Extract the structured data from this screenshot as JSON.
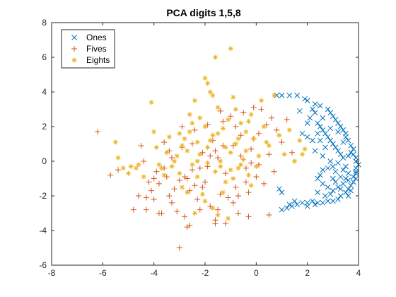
{
  "chart_data": {
    "type": "scatter",
    "title": "PCA digits 1,5,8",
    "xlabel": "",
    "ylabel": "",
    "xlim": [
      -8,
      4
    ],
    "ylim": [
      -6,
      8
    ],
    "xticks": [
      "-8",
      "-6",
      "-4",
      "-2",
      "0",
      "2",
      "4"
    ],
    "yticks": [
      "-6",
      "-4",
      "-2",
      "0",
      "2",
      "4",
      "6",
      "8"
    ],
    "grid": false,
    "legend_position": "top-left",
    "series": [
      {
        "name": "Ones",
        "marker": "x",
        "color": "#0072BD",
        "points": [
          [
            0.8,
            3.8
          ],
          [
            1.0,
            3.8
          ],
          [
            1.3,
            3.8
          ],
          [
            1.6,
            3.8
          ],
          [
            1.9,
            3.6
          ],
          [
            2.0,
            3.5
          ],
          [
            2.3,
            3.3
          ],
          [
            2.5,
            3.2
          ],
          [
            2.8,
            3.0
          ],
          [
            2.9,
            2.8
          ],
          [
            3.0,
            2.6
          ],
          [
            3.1,
            2.4
          ],
          [
            3.2,
            2.2
          ],
          [
            3.3,
            2.0
          ],
          [
            3.4,
            1.8
          ],
          [
            3.5,
            1.6
          ],
          [
            3.5,
            1.4
          ],
          [
            3.6,
            1.2
          ],
          [
            3.7,
            0.9
          ],
          [
            3.8,
            0.7
          ],
          [
            3.8,
            0.4
          ],
          [
            3.9,
            0.2
          ],
          [
            3.9,
            0.0
          ],
          [
            4.0,
            -0.2
          ],
          [
            3.9,
            -0.4
          ],
          [
            3.9,
            -0.7
          ],
          [
            3.9,
            -1.0
          ],
          [
            3.8,
            -1.2
          ],
          [
            3.7,
            -1.4
          ],
          [
            3.6,
            -1.6
          ],
          [
            3.5,
            -1.8
          ],
          [
            3.3,
            -2.0
          ],
          [
            3.2,
            -2.2
          ],
          [
            3.0,
            -2.3
          ],
          [
            2.8,
            -2.3
          ],
          [
            2.6,
            -2.4
          ],
          [
            2.4,
            -2.4
          ],
          [
            2.2,
            -2.3
          ],
          [
            2.0,
            -2.4
          ],
          [
            1.8,
            -2.4
          ],
          [
            1.6,
            -2.5
          ],
          [
            1.4,
            -2.6
          ],
          [
            1.2,
            -2.7
          ],
          [
            1.0,
            -2.8
          ],
          [
            0.9,
            -1.6
          ],
          [
            1.0,
            -1.8
          ],
          [
            2.0,
            2.2
          ],
          [
            2.1,
            2.5
          ],
          [
            2.2,
            3.0
          ],
          [
            2.3,
            2.8
          ],
          [
            2.4,
            2.2
          ],
          [
            2.5,
            2.0
          ],
          [
            2.6,
            1.8
          ],
          [
            2.7,
            1.6
          ],
          [
            2.8,
            1.4
          ],
          [
            2.9,
            1.2
          ],
          [
            3.0,
            1.0
          ],
          [
            3.1,
            0.8
          ],
          [
            3.2,
            0.6
          ],
          [
            3.3,
            0.4
          ],
          [
            3.4,
            0.2
          ],
          [
            3.2,
            -0.1
          ],
          [
            3.0,
            -0.3
          ],
          [
            2.8,
            -0.4
          ],
          [
            2.6,
            -0.5
          ],
          [
            2.5,
            -0.8
          ],
          [
            2.4,
            -1.0
          ],
          [
            2.6,
            -1.3
          ],
          [
            2.8,
            -1.5
          ],
          [
            3.0,
            -1.7
          ],
          [
            3.2,
            -1.5
          ],
          [
            3.4,
            -1.3
          ],
          [
            3.5,
            -1.0
          ],
          [
            3.6,
            -0.7
          ],
          [
            3.4,
            -0.5
          ],
          [
            3.6,
            0.3
          ],
          [
            3.7,
            0.5
          ],
          [
            2.3,
            0.6
          ],
          [
            2.6,
            0.3
          ],
          [
            2.9,
            0.0
          ],
          [
            3.1,
            -0.6
          ],
          [
            3.3,
            -0.9
          ],
          [
            3.5,
            -0.3
          ],
          [
            2.4,
            -1.8
          ],
          [
            2.7,
            -2.0
          ],
          [
            2.9,
            -1.9
          ],
          [
            3.1,
            -1.2
          ],
          [
            3.3,
            -1.6
          ],
          [
            3.6,
            -2.0
          ],
          [
            3.7,
            -1.7
          ],
          [
            1.8,
            1.6
          ],
          [
            2.0,
            1.4
          ],
          [
            2.2,
            1.2
          ],
          [
            2.4,
            1.6
          ],
          [
            2.9,
            1.9
          ],
          [
            3.2,
            1.7
          ],
          [
            3.4,
            1.1
          ],
          [
            1.5,
            -2.3
          ],
          [
            1.3,
            -2.5
          ],
          [
            2.0,
            -2.6
          ],
          [
            2.3,
            -2.5
          ],
          [
            3.9,
            -0.6
          ],
          [
            3.8,
            -0.9
          ],
          [
            3.6,
            -1.1
          ],
          [
            2.7,
            0.8
          ],
          [
            2.5,
            1.2
          ],
          [
            1.7,
            2.9
          ],
          [
            2.6,
            2.5
          ],
          [
            3.0,
            -1.0
          ]
        ]
      },
      {
        "name": "Fives",
        "marker": "+",
        "color": "#D95319",
        "points": [
          [
            -6.2,
            1.7
          ],
          [
            -5.7,
            -0.8
          ],
          [
            -4.8,
            -2.8
          ],
          [
            -4.3,
            -2.1
          ],
          [
            -4.2,
            -1.2
          ],
          [
            -4.1,
            -1.7
          ],
          [
            -4.0,
            -2.2
          ],
          [
            -3.9,
            -0.6
          ],
          [
            -3.8,
            -1.3
          ],
          [
            -3.7,
            -3.0
          ],
          [
            -3.6,
            1.1
          ],
          [
            -3.5,
            -0.9
          ],
          [
            -3.4,
            0.6
          ],
          [
            -3.3,
            -2.4
          ],
          [
            -3.2,
            -1.6
          ],
          [
            -3.1,
            -2.9
          ],
          [
            -3.0,
            -1.1
          ],
          [
            -2.9,
            0.8
          ],
          [
            -2.8,
            -3.2
          ],
          [
            -2.7,
            -3.8
          ],
          [
            -2.6,
            -1.7
          ],
          [
            -2.5,
            -0.5
          ],
          [
            -2.4,
            1.8
          ],
          [
            -2.3,
            -2.2
          ],
          [
            -2.2,
            -2.8
          ],
          [
            -2.1,
            0.5
          ],
          [
            -2.0,
            -1.2
          ],
          [
            -1.9,
            -0.3
          ],
          [
            -1.8,
            -2.6
          ],
          [
            -1.7,
            1.2
          ],
          [
            -1.6,
            -3.4
          ],
          [
            -1.5,
            0.2
          ],
          [
            -1.4,
            -1.9
          ],
          [
            -1.3,
            2.3
          ],
          [
            -1.2,
            -0.7
          ],
          [
            -1.1,
            -2.1
          ],
          [
            -1.0,
            2.6
          ],
          [
            -0.9,
            0.9
          ],
          [
            -0.8,
            -1.5
          ],
          [
            -0.7,
            -3.0
          ],
          [
            -0.6,
            1.5
          ],
          [
            -0.5,
            2.8
          ],
          [
            -0.4,
            -0.4
          ],
          [
            -0.3,
            -1.8
          ],
          [
            -0.2,
            0.7
          ],
          [
            -0.1,
            3.1
          ],
          [
            0.0,
            -0.9
          ],
          [
            0.1,
            1.6
          ],
          [
            0.2,
            3.0
          ],
          [
            0.3,
            -1.3
          ],
          [
            0.4,
            2.1
          ],
          [
            0.5,
            0.4
          ],
          [
            0.6,
            2.5
          ],
          [
            0.7,
            -0.6
          ],
          [
            0.8,
            1.8
          ],
          [
            1.0,
            1.1
          ],
          [
            1.2,
            2.4
          ],
          [
            -2.7,
            -1.0
          ],
          [
            -3.0,
            -5.0
          ],
          [
            -2.6,
            -3.7
          ],
          [
            -1.2,
            -3.6
          ],
          [
            -1.6,
            -3.6
          ],
          [
            -0.3,
            -3.2
          ],
          [
            0.5,
            -3.1
          ],
          [
            -4.5,
            0.9
          ],
          [
            -4.4,
            0.0
          ],
          [
            -2.9,
            2.0
          ],
          [
            -2.2,
            -0.4
          ],
          [
            -1.8,
            0.3
          ],
          [
            -0.9,
            -2.4
          ],
          [
            -0.6,
            0.3
          ],
          [
            -0.2,
            -0.1
          ],
          [
            0.1,
            -0.2
          ],
          [
            -1.4,
            2.9
          ],
          [
            -1.9,
            2.1
          ],
          [
            -3.3,
            0.2
          ],
          [
            -2.5,
            1.0
          ],
          [
            -0.8,
            2.0
          ],
          [
            -4.6,
            -2.0
          ],
          [
            -3.8,
            -3.0
          ],
          [
            -2.1,
            -1.5
          ],
          [
            -1.5,
            -2.8
          ],
          [
            -0.4,
            -1.2
          ],
          [
            -5.4,
            -0.5
          ],
          [
            -4.0,
            -1.0
          ],
          [
            -3.4,
            -2.0
          ],
          [
            -2.8,
            -0.9
          ],
          [
            -1.3,
            0.9
          ],
          [
            -0.7,
            -2.0
          ],
          [
            1.4,
            0.5
          ],
          [
            -0.1,
            1.3
          ],
          [
            -1.6,
            0.6
          ],
          [
            -2.4,
            -1.4
          ],
          [
            -3.6,
            -0.4
          ],
          [
            -4.3,
            -2.8
          ]
        ]
      },
      {
        "name": "Eights",
        "marker": "*",
        "color": "#EDB120",
        "points": [
          [
            -5.5,
            1.1
          ],
          [
            -5.4,
            0.2
          ],
          [
            -5.2,
            -0.4
          ],
          [
            -5.0,
            -0.7
          ],
          [
            -4.7,
            -0.4
          ],
          [
            -4.4,
            -0.9
          ],
          [
            -4.1,
            3.4
          ],
          [
            -4.0,
            1.7
          ],
          [
            -3.8,
            -0.2
          ],
          [
            -3.6,
            -0.8
          ],
          [
            -3.4,
            1.4
          ],
          [
            -3.3,
            -0.3
          ],
          [
            -3.1,
            0.3
          ],
          [
            -3.0,
            -0.7
          ],
          [
            -2.9,
            -1.5
          ],
          [
            -2.8,
            1.3
          ],
          [
            -2.7,
            0.6
          ],
          [
            -2.6,
            2.7
          ],
          [
            -2.5,
            -0.2
          ],
          [
            -2.4,
            3.5
          ],
          [
            -2.3,
            1.1
          ],
          [
            -2.2,
            0.4
          ],
          [
            -2.1,
            -1.9
          ],
          [
            -2.0,
            2.0
          ],
          [
            -1.9,
            0.8
          ],
          [
            -1.8,
            4.0
          ],
          [
            -1.7,
            1.5
          ],
          [
            -1.6,
            -0.6
          ],
          [
            -1.5,
            3.1
          ],
          [
            -1.4,
            0.0
          ],
          [
            -1.3,
            1.9
          ],
          [
            -1.2,
            -1.2
          ],
          [
            -1.1,
            2.4
          ],
          [
            -1.0,
            0.5
          ],
          [
            -0.9,
            3.7
          ],
          [
            -0.8,
            1.0
          ],
          [
            -0.7,
            -0.4
          ],
          [
            -0.6,
            2.2
          ],
          [
            -0.5,
            0.1
          ],
          [
            -0.4,
            1.7
          ],
          [
            -0.3,
            -0.8
          ],
          [
            -0.2,
            2.7
          ],
          [
            -0.1,
            1.3
          ],
          [
            0.1,
            0.3
          ],
          [
            0.3,
            2.0
          ],
          [
            0.5,
            0.9
          ],
          [
            0.7,
            3.8
          ],
          [
            0.9,
            1.5
          ],
          [
            1.1,
            0.4
          ],
          [
            1.3,
            1.8
          ],
          [
            -2.0,
            4.8
          ],
          [
            -1.9,
            4.5
          ],
          [
            -1.6,
            6.0
          ],
          [
            -1.0,
            6.5
          ],
          [
            -2.4,
            -3.0
          ],
          [
            -1.7,
            -2.7
          ],
          [
            -1.5,
            -3.1
          ],
          [
            -1.1,
            -3.3
          ],
          [
            -2.3,
            0.0
          ],
          [
            -1.9,
            -0.1
          ],
          [
            -1.4,
            -0.3
          ],
          [
            -1.0,
            -0.5
          ],
          [
            -0.6,
            -0.2
          ],
          [
            -2.6,
            1.7
          ],
          [
            -2.9,
            0.9
          ],
          [
            -3.2,
            0.0
          ],
          [
            -3.5,
            0.5
          ],
          [
            -1.8,
            1.2
          ],
          [
            -1.2,
            0.8
          ],
          [
            -0.4,
            0.6
          ],
          [
            0.0,
            -0.3
          ],
          [
            -4.6,
            -0.2
          ],
          [
            -3.9,
            0.8
          ],
          [
            -2.2,
            2.5
          ],
          [
            -0.8,
            3.0
          ],
          [
            0.4,
            1.1
          ],
          [
            1.7,
            1.2
          ],
          [
            1.9,
            0.7
          ],
          [
            -1.3,
            -1.8
          ],
          [
            -0.9,
            -1.0
          ],
          [
            -2.7,
            -1.8
          ],
          [
            -2.0,
            -2.3
          ],
          [
            -0.3,
            2.3
          ],
          [
            0.2,
            3.5
          ],
          [
            -1.7,
            3.8
          ],
          [
            -2.5,
            2.2
          ],
          [
            -3.0,
            1.6
          ],
          [
            1.5,
            0.0
          ],
          [
            1.8,
            0.4
          ],
          [
            -0.7,
            1.3
          ],
          [
            -1.5,
            1.6
          ],
          [
            -2.3,
            -0.9
          ],
          [
            -3.7,
            -0.4
          ],
          [
            -4.9,
            -0.3
          ],
          [
            -0.2,
            -1.4
          ]
        ]
      }
    ]
  }
}
